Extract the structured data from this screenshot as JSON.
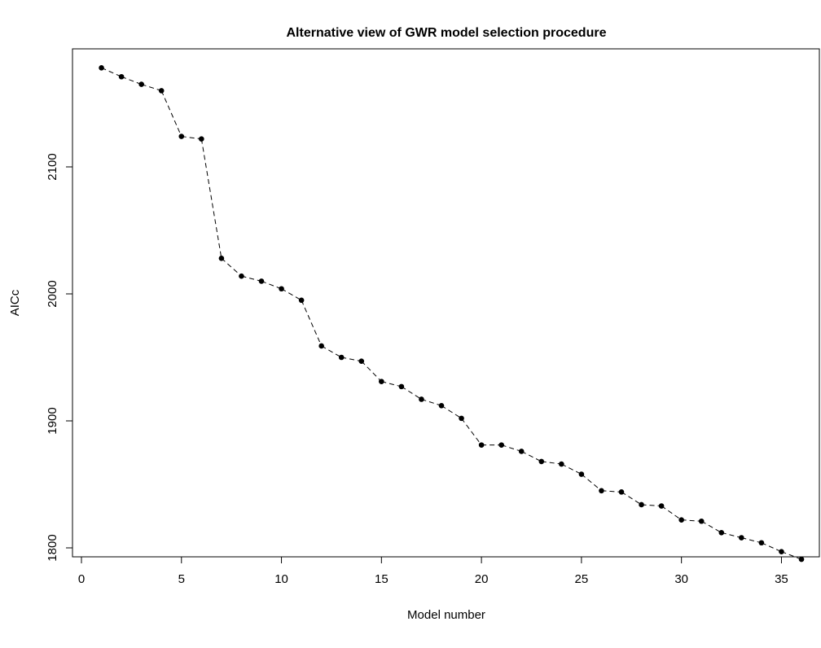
{
  "chart_data": {
    "type": "line",
    "title": "Alternative view of GWR model selection procedure",
    "xlabel": "Model number",
    "ylabel": "AICc",
    "xlim": [
      0,
      36
    ],
    "ylim": [
      1790,
      2178
    ],
    "xticks": [
      0,
      5,
      10,
      15,
      20,
      25,
      30,
      35
    ],
    "yticks": [
      1800,
      1900,
      2000,
      2100
    ],
    "line_style": "dashed",
    "marker": "filled-circle",
    "grid": false,
    "series": [
      {
        "x": [
          1,
          2,
          3,
          4,
          5,
          6,
          7,
          8,
          9,
          10,
          11,
          12,
          13,
          14,
          15,
          16,
          17,
          18,
          19,
          20,
          21,
          22,
          23,
          24,
          25,
          26,
          27,
          28,
          29,
          30,
          31,
          32,
          33,
          34,
          35,
          36
        ],
        "values": [
          2178,
          2171,
          2165,
          2160,
          2124,
          2122,
          2028,
          2014,
          2010,
          2004,
          1995,
          1959,
          1950,
          1947,
          1931,
          1927,
          1917,
          1912,
          1902,
          1881,
          1881,
          1876,
          1868,
          1866,
          1858,
          1845,
          1844,
          1834,
          1833,
          1822,
          1821,
          1812,
          1808,
          1804,
          1797,
          1791
        ]
      }
    ],
    "colors": {
      "line": "#000000",
      "marker": "#000000"
    }
  }
}
